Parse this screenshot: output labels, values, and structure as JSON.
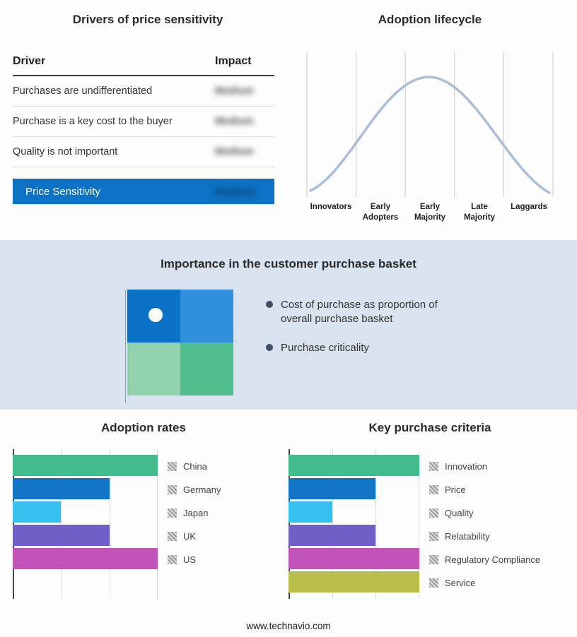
{
  "drivers": {
    "title": "Drivers of price sensitivity",
    "col_driver": "Driver",
    "col_impact": "Impact",
    "rows": [
      {
        "driver": "Purchases are undifferentiated",
        "impact": "Medium"
      },
      {
        "driver": "Purchase is a key cost to the buyer",
        "impact": "Medium"
      },
      {
        "driver": "Quality is not important",
        "impact": "Medium"
      }
    ],
    "summary": {
      "label": "Price Sensitivity",
      "impact": "Medium"
    }
  },
  "basket": {
    "title": "Importance in the customer purchase basket",
    "bullets": [
      "Cost of purchase as proportion of overall purchase basket",
      "Purchase criticality"
    ]
  },
  "footer": "www.technavio.com",
  "palette": {
    "summary_bar_blue": "#0d72c4",
    "band_background": "#d9e3ef",
    "curve": "#a9bed8",
    "quadrant": [
      "#0a72c6",
      "#3090dc",
      "#8fd2ab",
      "#4fbe8c"
    ],
    "green": "#42bc8d",
    "blue": "#1274c5",
    "cyan": "#35c0f0",
    "purple": "#6f5fc6",
    "magenta": "#c253b8",
    "olive": "#b9bd4a"
  },
  "chart_data": [
    {
      "type": "line",
      "title": "Adoption lifecycle",
      "categories": [
        "Innovators",
        "Early Adopters",
        "Early Majority",
        "Late Majority",
        "Laggards"
      ],
      "values": [
        10,
        55,
        100,
        55,
        10
      ],
      "ylim": [
        0,
        100
      ],
      "grid": "vertical-only",
      "note": "bell curve, no numeric axis labels shown"
    },
    {
      "type": "bar",
      "title": "Adoption rates",
      "orientation": "horizontal",
      "categories": [
        "China",
        "Germany",
        "Japan",
        "UK",
        "US"
      ],
      "values": [
        3,
        2,
        1,
        2,
        3
      ],
      "xmax": 3,
      "xlabel": "",
      "ylabel": "",
      "legend_position": "right",
      "note": "no numeric axis labels shown; values estimated from gridlines"
    },
    {
      "type": "bar",
      "title": "Key purchase criteria",
      "orientation": "horizontal",
      "categories": [
        "Innovation",
        "Price",
        "Quality",
        "Relatability",
        "Regulatory Compliance",
        "Service"
      ],
      "values": [
        3,
        2,
        1,
        2,
        3,
        3
      ],
      "xmax": 3,
      "xlabel": "",
      "ylabel": "",
      "legend_position": "right",
      "note": "no numeric axis labels shown; values estimated from gridlines"
    }
  ]
}
